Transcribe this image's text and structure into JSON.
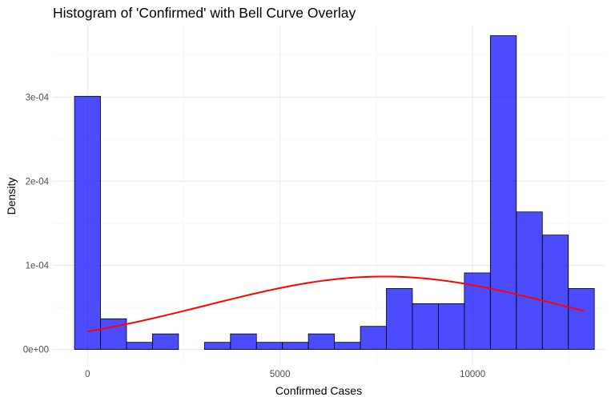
{
  "chart_data": {
    "type": "bar",
    "title": "Histogram of 'Confirmed' with Bell Curve Overlay",
    "xlabel": "Confirmed Cases",
    "ylabel": "Density",
    "xlim": [
      -900,
      13450
    ],
    "ylim": [
      -1.75e-05,
      0.000385
    ],
    "x_ticks": [
      0,
      5000,
      10000
    ],
    "x_tick_labels": [
      "0",
      "5000",
      "10000"
    ],
    "y_ticks": [
      0,
      0.0001,
      0.0002,
      0.0003
    ],
    "y_tick_labels": [
      "0e+00",
      "1e-04",
      "2e-04",
      "3e-04"
    ],
    "grid": true,
    "bin_width": 675,
    "bin_starts": [
      -337.5,
      337.5,
      1012.5,
      1687.5,
      2362.5,
      3037.5,
      3712.5,
      4387.5,
      5062.5,
      5737.5,
      6412.5,
      7087.5,
      7762.5,
      8437.5,
      9112.5,
      9787.5,
      10462.5,
      11137.5,
      11812.5,
      12487.5
    ],
    "values": [
      0.000301,
      3.65e-05,
      8.5e-06,
      1.85e-05,
      0,
      8.5e-06,
      1.85e-05,
      8.5e-06,
      8.5e-06,
      1.85e-05,
      8.5e-06,
      2.75e-05,
      7.25e-05,
      5.45e-05,
      5.45e-05,
      9.1e-05,
      0.000373,
      0.0001635,
      0.000136,
      7.25e-05
    ],
    "bar_color": "#0000ff",
    "bar_opacity": 0.7,
    "bar_stroke": "#000000",
    "curve": {
      "name": "Normal density",
      "color": "#ff0000",
      "mean": 7700,
      "sd": 4600,
      "x_range": [
        0,
        12900
      ]
    }
  }
}
